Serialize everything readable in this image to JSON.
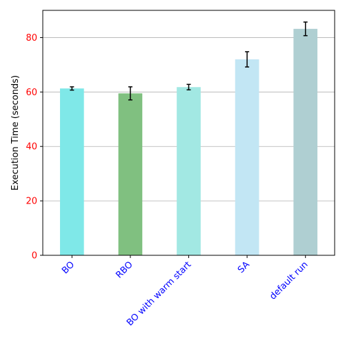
{
  "chart_data": {
    "type": "bar",
    "title": "",
    "xlabel": "",
    "ylabel": "Execution Time (seconds)",
    "categories": [
      "BO",
      "RBO",
      "BO with warm start",
      "SA",
      "default run"
    ],
    "values": [
      61.3,
      59.5,
      61.8,
      72.0,
      83.2
    ],
    "errors": [
      0.6,
      2.4,
      1.0,
      2.8,
      2.5
    ],
    "bar_colors": [
      "#7fe8e8",
      "#80c080",
      "#a2e8e3",
      "#c2e6f4",
      "#afcfd2"
    ],
    "ylim": [
      0,
      90
    ],
    "yticks": [
      0,
      20,
      40,
      60,
      80
    ],
    "grid": "y",
    "ytick_color": "#ff0000",
    "xtick_color": "#0000ff"
  }
}
